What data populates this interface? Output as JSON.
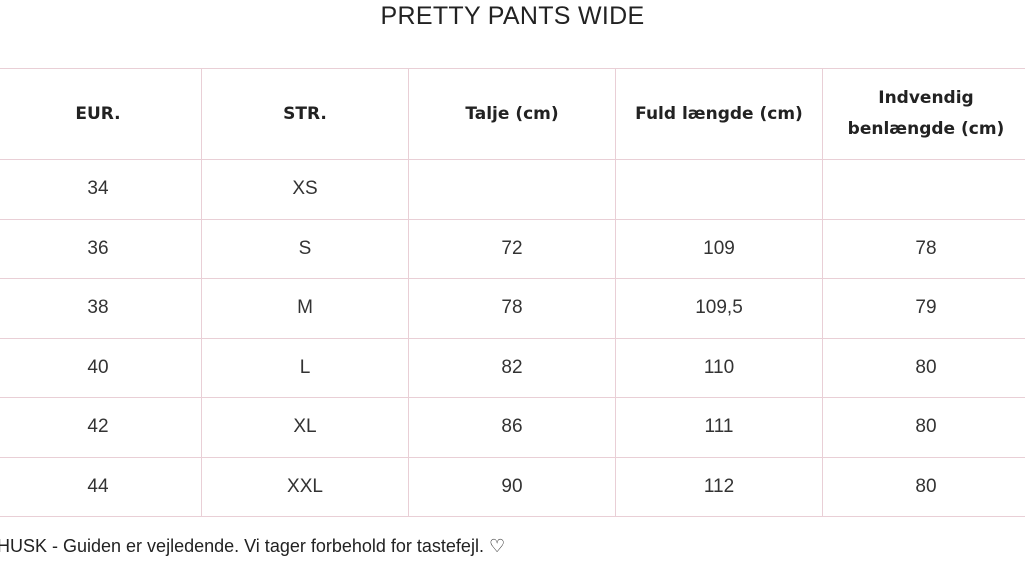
{
  "title": "PRETTY PANTS WIDE",
  "table": {
    "headers": [
      "EUR.",
      "STR.",
      "Talje (cm)",
      "Fuld længde (cm)",
      "Indvendig benlængde (cm)"
    ],
    "rows": [
      [
        "34",
        "XS",
        "",
        "",
        ""
      ],
      [
        "36",
        "S",
        "72",
        "109",
        "78"
      ],
      [
        "38",
        "M",
        "78",
        "109,5",
        "79"
      ],
      [
        "40",
        "L",
        "82",
        "110",
        "80"
      ],
      [
        "42",
        "XL",
        "86",
        "111",
        "80"
      ],
      [
        "44",
        "XXL",
        "90",
        "112",
        "80"
      ]
    ]
  },
  "note": "HUSK - Guiden er vejledende. Vi tager forbehold for tastefejl. ♡",
  "colors": {
    "border": "#e9cfd6",
    "text": "#222222"
  }
}
